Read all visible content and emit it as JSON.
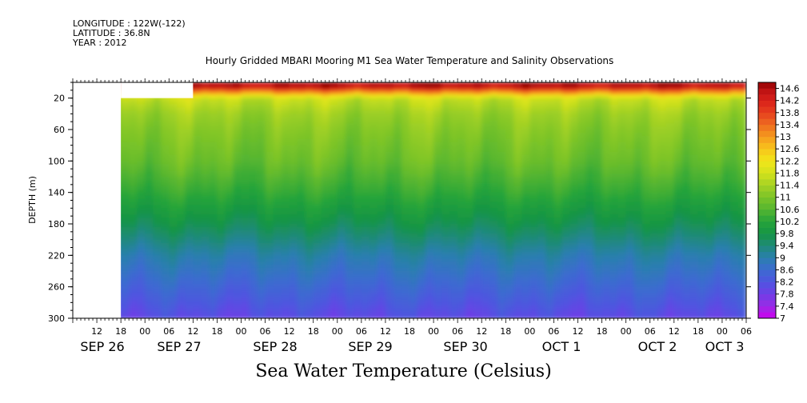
{
  "header": {
    "longitude": "LONGITUDE : 122W(-122)",
    "latitude": "LATITUDE : 36.8N",
    "year": "YEAR : 2012"
  },
  "title": "Hourly Gridded MBARI Mooring M1 Sea Water Temperature and Salinity Observations",
  "footer_title": "Sea Water Temperature (Celsius)",
  "chart_data": {
    "type": "heatmap",
    "title": "Hourly Gridded MBARI Mooring M1 Sea Water Temperature and Salinity Observations",
    "variable": "Sea Water Temperature (Celsius)",
    "ylabel": "DEPTH (m)",
    "ylim": [
      300,
      0
    ],
    "y_ticks": [
      20,
      60,
      100,
      140,
      180,
      220,
      260,
      300
    ],
    "x_hour_ticks": [
      "12",
      "18",
      "00",
      "06",
      "12",
      "18",
      "00",
      "06",
      "12",
      "18",
      "00",
      "06",
      "12",
      "18",
      "00",
      "06",
      "12",
      "18",
      "00",
      "06",
      "12",
      "18",
      "00",
      "06",
      "12",
      "18",
      "00",
      "06"
    ],
    "x_day_labels": [
      "SEP 26",
      "SEP 27",
      "SEP 28",
      "SEP 29",
      "SEP 30",
      "OCT 1",
      "OCT 2",
      "OCT 3"
    ],
    "colorbar": {
      "min": 7,
      "max": 14.8,
      "step": 0.2,
      "tick_labels": [
        "14.6",
        "14.2",
        "13.8",
        "13.4",
        "13",
        "12.6",
        "12.2",
        "11.8",
        "11.4",
        "11",
        "10.6",
        "10.2",
        "9.8",
        "9.4",
        "9",
        "8.6",
        "8.2",
        "7.8",
        "7.4",
        "7"
      ]
    },
    "data_start_hour": 18,
    "profile": [
      {
        "depth": 5,
        "temp": 14.6
      },
      {
        "depth": 12,
        "temp": 13.2
      },
      {
        "depth": 20,
        "temp": 11.7
      },
      {
        "depth": 40,
        "temp": 11.3
      },
      {
        "depth": 60,
        "temp": 11.1
      },
      {
        "depth": 100,
        "temp": 10.8
      },
      {
        "depth": 140,
        "temp": 10.3
      },
      {
        "depth": 180,
        "temp": 9.7
      },
      {
        "depth": 220,
        "temp": 9.0
      },
      {
        "depth": 260,
        "temp": 8.5
      },
      {
        "depth": 300,
        "temp": 8.0
      }
    ]
  }
}
